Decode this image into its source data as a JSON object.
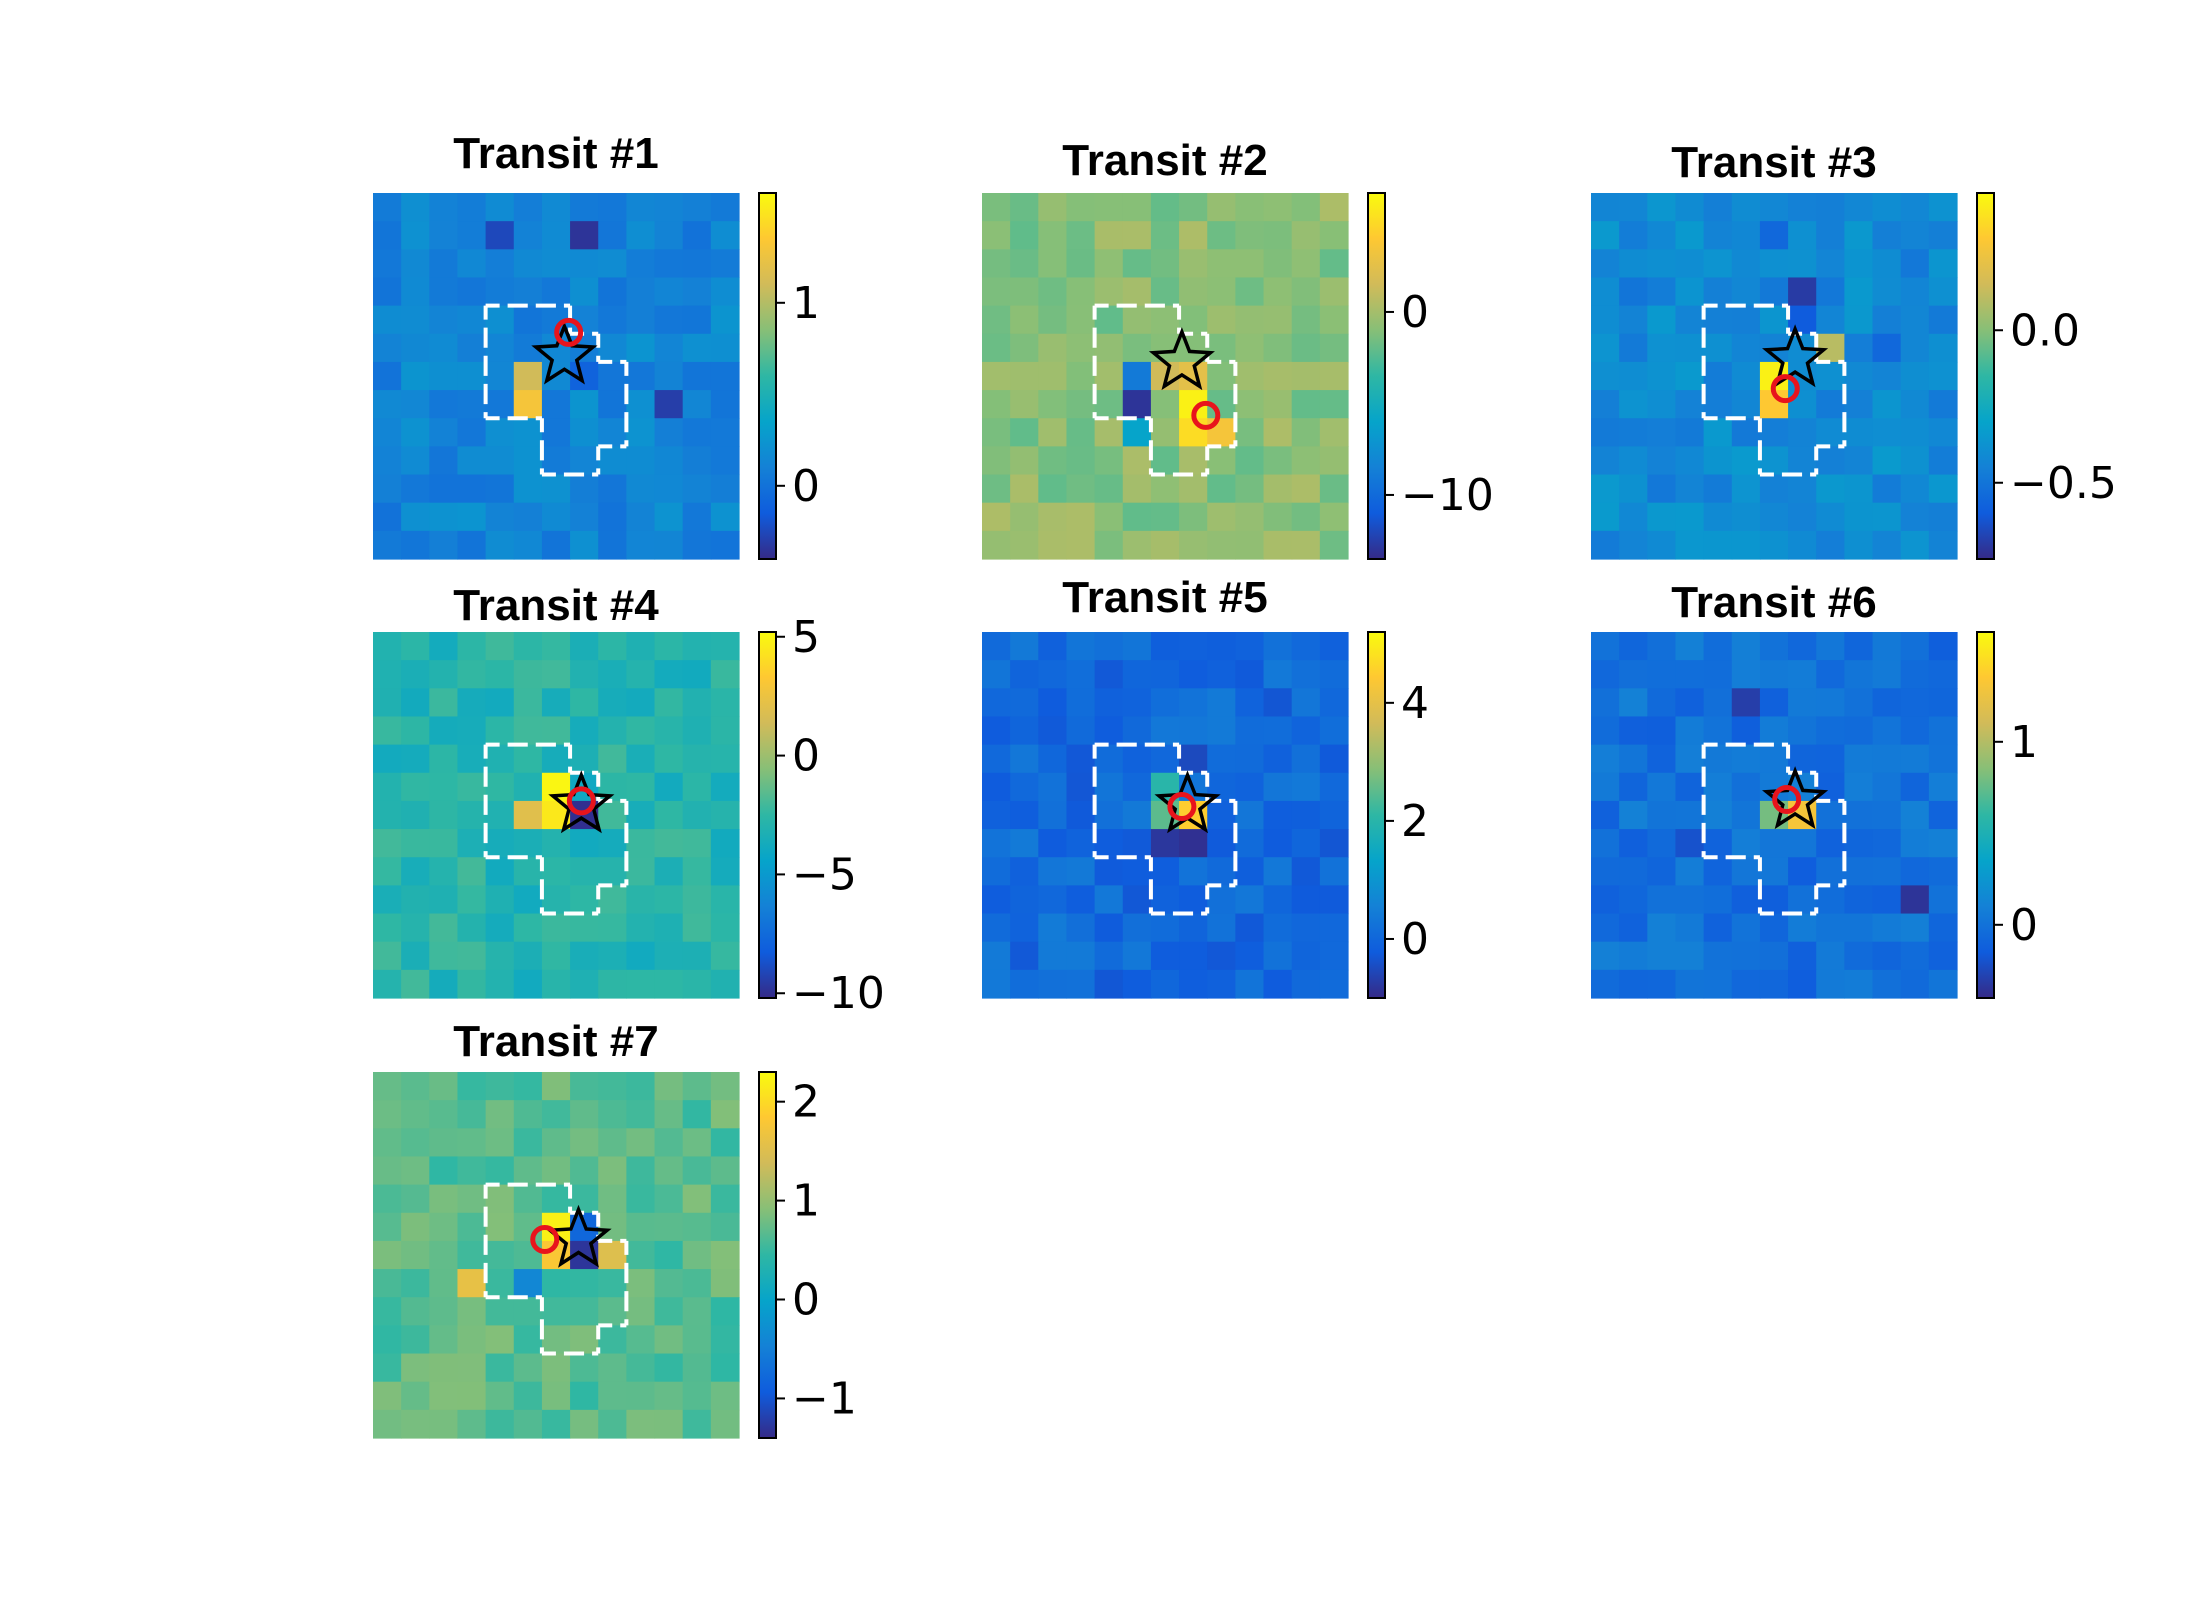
{
  "chart_data": [
    {
      "type": "heatmap",
      "title": "Transit #1",
      "colorbar_range": [
        -0.4,
        1.6
      ],
      "colorbar_ticks": [
        {
          "value": 0,
          "label": "0"
        },
        {
          "value": 1,
          "label": "1"
        }
      ],
      "star_cell": [
        6.8,
        5.8
      ],
      "circle_cell": [
        6.95,
        4.95
      ],
      "hot_cells": [
        [
          5,
          7,
          1.3
        ],
        [
          5,
          6,
          1.1
        ]
      ],
      "cold_cells": [
        [
          7,
          1,
          -0.35
        ],
        [
          4,
          1,
          -0.25
        ],
        [
          7,
          6,
          -0.1
        ],
        [
          10,
          7,
          -0.3
        ]
      ]
    },
    {
      "type": "heatmap",
      "title": "Transit #2",
      "colorbar_range": [
        -13.5,
        6.5
      ],
      "colorbar_ticks": [
        {
          "value": 0,
          "label": "0"
        },
        {
          "value": -10,
          "label": "−10"
        }
      ],
      "star_cell": [
        7.1,
        6.0
      ],
      "circle_cell": [
        7.95,
        7.9
      ],
      "hot_cells": [
        [
          7,
          7,
          6.0
        ],
        [
          7,
          8,
          5.0
        ],
        [
          8,
          8,
          3.5
        ],
        [
          7,
          6,
          2.5
        ],
        [
          6,
          6,
          1.5
        ]
      ],
      "cold_cells": [
        [
          5,
          7,
          -13.0
        ],
        [
          5,
          6,
          -9.0
        ],
        [
          5,
          8,
          -6.0
        ]
      ]
    },
    {
      "type": "heatmap",
      "title": "Transit #3",
      "colorbar_range": [
        -0.75,
        0.45
      ],
      "colorbar_ticks": [
        {
          "value": 0.0,
          "label": "0.0"
        },
        {
          "value": -0.5,
          "label": "−0.5"
        }
      ],
      "star_cell": [
        7.25,
        5.9
      ],
      "circle_cell": [
        6.9,
        6.95
      ],
      "hot_cells": [
        [
          6,
          6,
          0.42
        ],
        [
          6,
          7,
          0.3
        ],
        [
          8,
          5,
          0.1
        ]
      ],
      "cold_cells": [
        [
          7,
          3,
          -0.7
        ],
        [
          7,
          4,
          -0.6
        ],
        [
          1,
          3,
          -0.5
        ],
        [
          6,
          1,
          -0.55
        ],
        [
          10,
          5,
          -0.55
        ],
        [
          13,
          7,
          -0.6
        ]
      ]
    },
    {
      "type": "heatmap",
      "title": "Transit #4",
      "colorbar_range": [
        -10.2,
        5.2
      ],
      "colorbar_ticks": [
        {
          "value": 5,
          "label": "5"
        },
        {
          "value": 0,
          "label": "0"
        },
        {
          "value": -5,
          "label": "−5"
        },
        {
          "value": -10,
          "label": "−10"
        }
      ],
      "star_cell": [
        7.4,
        6.15
      ],
      "circle_cell": [
        7.4,
        6.0
      ],
      "hot_cells": [
        [
          6,
          5,
          5.0
        ],
        [
          6,
          6,
          4.5
        ],
        [
          5,
          6,
          2.0
        ]
      ],
      "cold_cells": [
        [
          7,
          6,
          -10.0
        ],
        [
          7,
          5,
          -4.0
        ],
        [
          6,
          7,
          -3.0
        ]
      ]
    },
    {
      "type": "heatmap",
      "title": "Transit #5",
      "colorbar_range": [
        -1.0,
        5.2
      ],
      "colorbar_ticks": [
        {
          "value": 4,
          "label": "4"
        },
        {
          "value": 2,
          "label": "2"
        },
        {
          "value": 0,
          "label": "0"
        }
      ],
      "star_cell": [
        7.3,
        6.15
      ],
      "circle_cell": [
        7.1,
        6.2
      ],
      "hot_cells": [
        [
          7,
          6,
          4.5
        ],
        [
          6,
          5,
          2.0
        ],
        [
          6,
          6,
          2.5
        ]
      ],
      "cold_cells": [
        [
          6,
          7,
          -0.8
        ],
        [
          7,
          7,
          -0.9
        ],
        [
          7,
          4,
          -0.5
        ]
      ]
    },
    {
      "type": "heatmap",
      "title": "Transit #6",
      "colorbar_range": [
        -0.4,
        1.6
      ],
      "colorbar_ticks": [
        {
          "value": 1,
          "label": "1"
        },
        {
          "value": 0,
          "label": "0"
        }
      ],
      "star_cell": [
        7.25,
        6.0
      ],
      "circle_cell": [
        6.95,
        5.95
      ],
      "hot_cells": [
        [
          7,
          6,
          1.3
        ],
        [
          6,
          6,
          0.8
        ]
      ],
      "cold_cells": [
        [
          5,
          2,
          -0.3
        ],
        [
          11,
          9,
          -0.35
        ],
        [
          3,
          7,
          -0.2
        ]
      ]
    },
    {
      "type": "heatmap",
      "title": "Transit #7",
      "colorbar_range": [
        -1.4,
        2.3
      ],
      "colorbar_ticks": [
        {
          "value": 2,
          "label": "2"
        },
        {
          "value": 1,
          "label": "1"
        },
        {
          "value": 0,
          "label": "0"
        },
        {
          "value": -1,
          "label": "−1"
        }
      ],
      "star_cell": [
        7.3,
        5.95
      ],
      "circle_cell": [
        6.1,
        5.95
      ],
      "hot_cells": [
        [
          6,
          5,
          2.2
        ],
        [
          6,
          6,
          1.8
        ],
        [
          3,
          7,
          1.6
        ],
        [
          8,
          6,
          1.5
        ]
      ],
      "cold_cells": [
        [
          7,
          6,
          -1.3
        ],
        [
          7,
          5,
          -0.8
        ],
        [
          5,
          7,
          -0.4
        ]
      ]
    }
  ]
}
